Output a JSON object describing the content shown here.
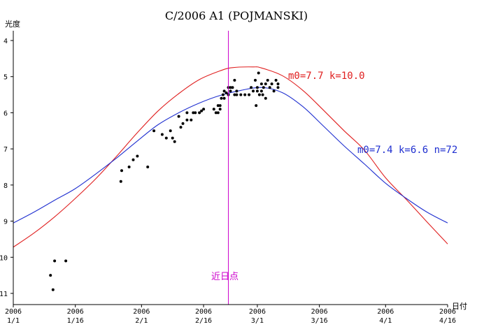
{
  "chart_data": {
    "type": "line",
    "title": "C/2006 A1 (POJMANSKI)",
    "ylabel": "光度",
    "xlabel": "日付",
    "x_start": "2006-01-01",
    "x_end": "2006-04-16",
    "xlim": [
      0,
      105
    ],
    "ylim": [
      4,
      11
    ],
    "y_inverted": true,
    "y_ticks": [
      4,
      5,
      6,
      7,
      8,
      9,
      10,
      11
    ],
    "x_ticks": [
      {
        "day": 0,
        "year": "2006",
        "label": "1/1"
      },
      {
        "day": 15,
        "year": "2006",
        "label": "1/16"
      },
      {
        "day": 31,
        "year": "2006",
        "label": "2/1"
      },
      {
        "day": 46,
        "year": "2006",
        "label": "2/16"
      },
      {
        "day": 59,
        "year": "2006",
        "label": "3/1"
      },
      {
        "day": 74,
        "year": "2006",
        "label": "3/16"
      },
      {
        "day": 90,
        "year": "2006",
        "label": "4/1"
      },
      {
        "day": 105,
        "year": "2006",
        "label": "4/16"
      }
    ],
    "grid": false,
    "perihelion": {
      "date": "2006-02-22",
      "label": "近日点",
      "color": "#cc00cc"
    },
    "series": [
      {
        "name": "m0=7.7 k=10.0",
        "color": "#e02020",
        "points": [
          [
            0,
            9.72
          ],
          [
            5,
            9.33
          ],
          [
            10,
            8.88
          ],
          [
            15,
            8.37
          ],
          [
            20,
            7.82
          ],
          [
            25,
            7.2
          ],
          [
            30,
            6.55
          ],
          [
            35,
            5.95
          ],
          [
            40,
            5.47
          ],
          [
            45,
            5.08
          ],
          [
            50,
            4.84
          ],
          [
            53,
            4.75
          ],
          [
            58,
            4.73
          ],
          [
            60,
            4.76
          ],
          [
            65,
            4.97
          ],
          [
            70,
            5.38
          ],
          [
            75,
            5.93
          ],
          [
            80,
            6.5
          ],
          [
            85,
            7.05
          ],
          [
            90,
            7.8
          ],
          [
            95,
            8.4
          ],
          [
            100,
            9.02
          ],
          [
            105,
            9.63
          ]
        ]
      },
      {
        "name": "m0=7.4 k=6.6 n=72",
        "color": "#2030d0",
        "points": [
          [
            0,
            9.05
          ],
          [
            5,
            8.75
          ],
          [
            10,
            8.42
          ],
          [
            15,
            8.1
          ],
          [
            20,
            7.69
          ],
          [
            25,
            7.25
          ],
          [
            30,
            6.78
          ],
          [
            35,
            6.33
          ],
          [
            40,
            6.0
          ],
          [
            45,
            5.73
          ],
          [
            50,
            5.52
          ],
          [
            55,
            5.38
          ],
          [
            60,
            5.3
          ],
          [
            65,
            5.44
          ],
          [
            70,
            5.83
          ],
          [
            75,
            6.37
          ],
          [
            80,
            6.92
          ],
          [
            85,
            7.43
          ],
          [
            90,
            7.95
          ],
          [
            95,
            8.37
          ],
          [
            100,
            8.75
          ],
          [
            105,
            9.05
          ]
        ]
      }
    ],
    "observations": [
      [
        9,
        10.5
      ],
      [
        9.6,
        10.9
      ],
      [
        10,
        10.1
      ],
      [
        12.7,
        10.1
      ],
      [
        26,
        7.9
      ],
      [
        26.2,
        7.6
      ],
      [
        28,
        7.5
      ],
      [
        29,
        7.3
      ],
      [
        30,
        7.2
      ],
      [
        32.5,
        7.5
      ],
      [
        34,
        6.5
      ],
      [
        36,
        6.6
      ],
      [
        37,
        6.7
      ],
      [
        38,
        6.5
      ],
      [
        38.5,
        6.7
      ],
      [
        39,
        6.8
      ],
      [
        40,
        6.1
      ],
      [
        40.5,
        6.4
      ],
      [
        41,
        6.3
      ],
      [
        42,
        6.2
      ],
      [
        42,
        6.0
      ],
      [
        43,
        6.2
      ],
      [
        43.5,
        6.0
      ],
      [
        44,
        6.0
      ],
      [
        45,
        6.0
      ],
      [
        45.5,
        5.95
      ],
      [
        46,
        5.9
      ],
      [
        48.5,
        5.9
      ],
      [
        49,
        6.0
      ],
      [
        49.5,
        5.8
      ],
      [
        49.5,
        6.0
      ],
      [
        50,
        5.8
      ],
      [
        50,
        5.9
      ],
      [
        50.3,
        5.6
      ],
      [
        50.7,
        5.5
      ],
      [
        51,
        5.4
      ],
      [
        51,
        5.6
      ],
      [
        51.5,
        5.45
      ],
      [
        52,
        5.5
      ],
      [
        52,
        5.3
      ],
      [
        52.5,
        5.4
      ],
      [
        52.5,
        5.3
      ],
      [
        53,
        5.3
      ],
      [
        53.5,
        5.5
      ],
      [
        53.5,
        5.1
      ],
      [
        54,
        5.5
      ],
      [
        54,
        5.4
      ],
      [
        55,
        5.5
      ],
      [
        56,
        5.5
      ],
      [
        57,
        5.5
      ],
      [
        57.5,
        5.3
      ],
      [
        58,
        5.4
      ],
      [
        58.5,
        5.1
      ],
      [
        58.7,
        5.8
      ],
      [
        59,
        5.4
      ],
      [
        59,
        5.3
      ],
      [
        59.3,
        4.9
      ],
      [
        59.5,
        5.5
      ],
      [
        60,
        5.2
      ],
      [
        60,
        5.4
      ],
      [
        60.3,
        5.5
      ],
      [
        60.5,
        5.3
      ],
      [
        61,
        5.6
      ],
      [
        61,
        5.2
      ],
      [
        61.5,
        5.1
      ],
      [
        62,
        5.3
      ],
      [
        62.5,
        5.2
      ],
      [
        63,
        5.4
      ],
      [
        63.5,
        5.1
      ],
      [
        64,
        5.2
      ],
      [
        64,
        5.3
      ]
    ]
  }
}
